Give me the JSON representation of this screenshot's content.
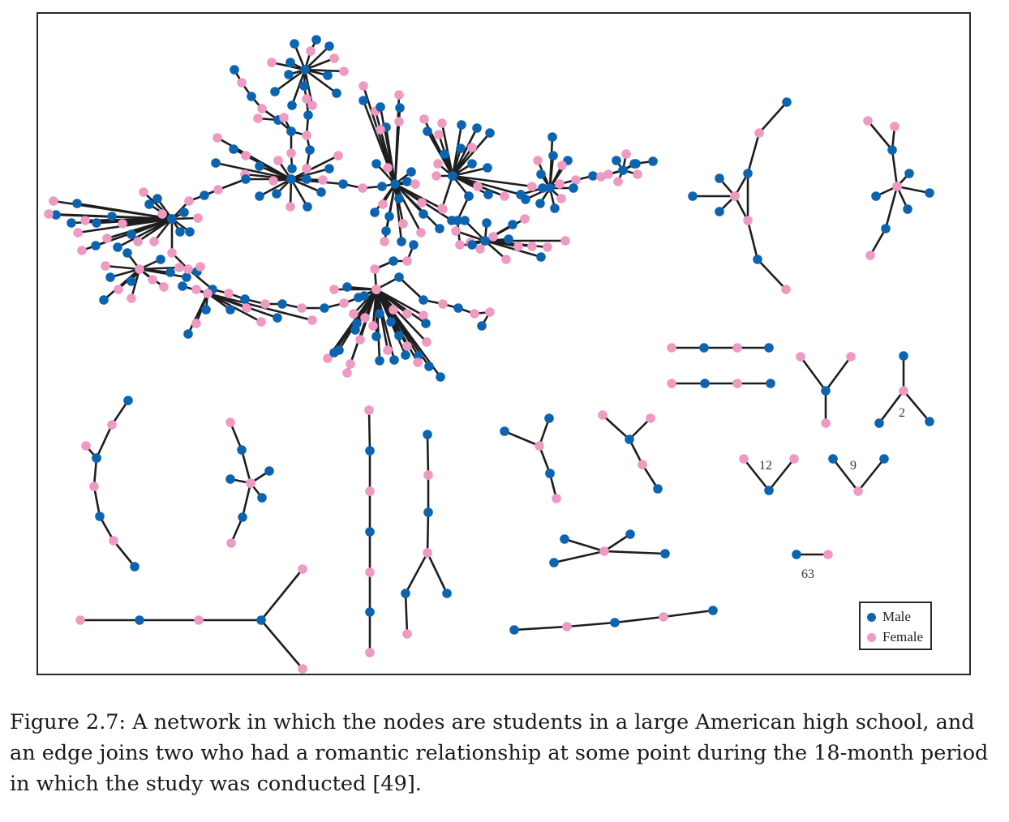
{
  "figure": {
    "legend": {
      "items": [
        {
          "label": "Male",
          "color": "#0c64b0"
        },
        {
          "label": "Female",
          "color": "#ef9ac2"
        }
      ]
    },
    "component_labels": [
      "2",
      "12",
      "9",
      "63"
    ]
  },
  "caption": {
    "text": "Figure 2.7: A network in which the nodes are students in a large American high school, and an edge joins two who had a romantic relationship at some point during the 18-month period in which the study was conducted [49]."
  }
}
